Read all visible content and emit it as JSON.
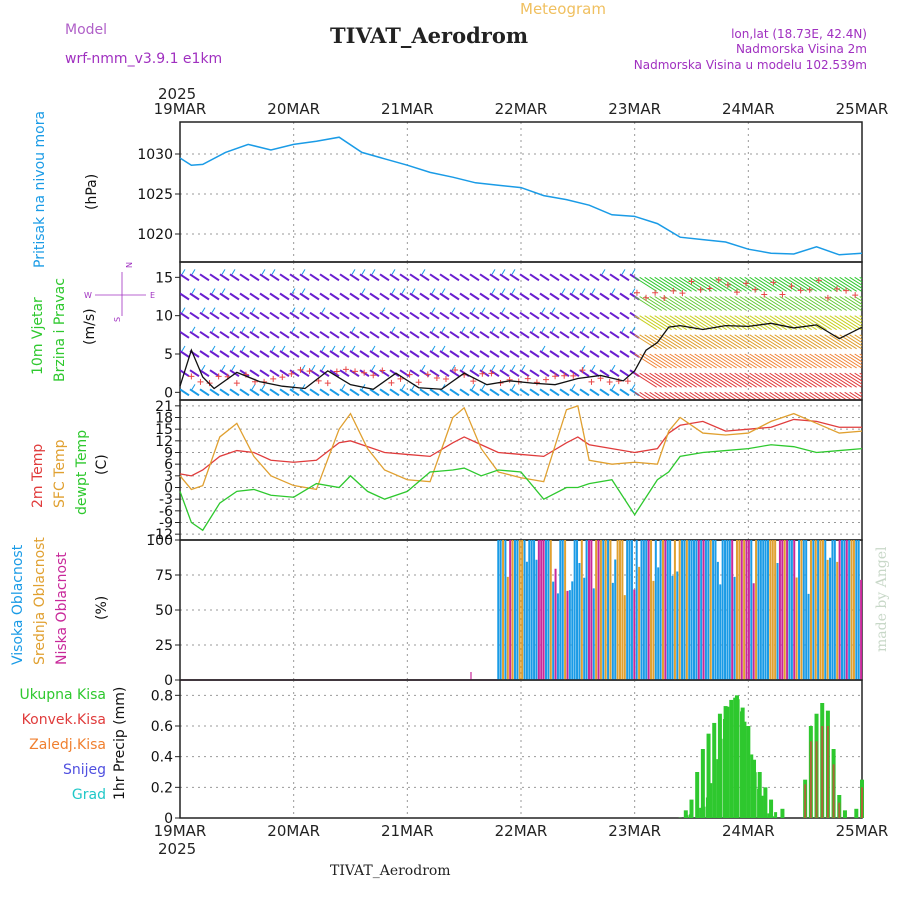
{
  "header": {
    "model_label": "Model",
    "model_name": "wrf-nmm_v3.9.1 e1km",
    "meteogram_label": "Meteogram",
    "station_title": "TIVAT_Aerodrom",
    "lonlat": "lon,lat (18.73E, 42.4N)",
    "altitude": "Nadmorska Visina 2m",
    "model_altitude": "Nadmorska Visina u modelu 102.539m",
    "year_top": "2025",
    "year_bottom": "2025",
    "footer_station": "TIVAT_Aerodrom",
    "credit": "made by Angel"
  },
  "x_axis": {
    "ticks": [
      "19MAR",
      "20MAR",
      "21MAR",
      "22MAR",
      "23MAR",
      "24MAR",
      "25MAR"
    ]
  },
  "colors": {
    "pressure": "#1a9be6",
    "temp2m": "#e03c3c",
    "sfc_temp": "#e0a030",
    "dewpoint": "#2ec82e",
    "high_cloud": "#1a9be6",
    "mid_cloud": "#e0a030",
    "low_cloud": "#c8289a",
    "total_precip": "#2ec82e",
    "conv_precip": "#e03c3c",
    "frozen_precip": "#f08030",
    "snow": "#5050e0",
    "hail": "#20c8c8",
    "wind_ms": "#6a1fd0"
  },
  "chart_data": [
    {
      "type": "line",
      "panel": "pressure",
      "title_labels": [
        "Pritisak na nivou mora"
      ],
      "ylabel": "(hPa)",
      "yticks": [
        "1030",
        "1025",
        "1020"
      ],
      "ylim": [
        1016.5,
        1034
      ],
      "x": [
        0,
        0.1,
        0.2,
        0.4,
        0.6,
        0.8,
        1.0,
        1.2,
        1.4,
        1.6,
        1.8,
        2.0,
        2.2,
        2.4,
        2.6,
        2.8,
        3.0,
        3.2,
        3.4,
        3.6,
        3.8,
        4.0,
        4.2,
        4.4,
        4.6,
        4.8,
        5.0,
        5.2,
        5.4,
        5.6,
        5.8,
        6.0
      ],
      "series": [
        {
          "values": [
            1029.5,
            1028.6,
            1028.7,
            1030.2,
            1031.2,
            1030.5,
            1031.2,
            1031.6,
            1032.1,
            1030.2,
            1029.4,
            1028.6,
            1027.7,
            1027.1,
            1026.4,
            1026.1,
            1025.8,
            1024.8,
            1024.3,
            1023.6,
            1022.4,
            1022.2,
            1021.3,
            1019.6,
            1019.3,
            1019.0,
            1018.1,
            1017.6,
            1017.5,
            1018.4,
            1017.4,
            1017.6
          ]
        }
      ]
    },
    {
      "type": "line",
      "panel": "wind",
      "title_labels": [
        "10m Vjetar",
        "Brzina i Pravac"
      ],
      "ylabel": "(m/s)",
      "compass": {
        "n": "N",
        "s": "S",
        "w": "W",
        "e": "E"
      },
      "yticks": [
        "15",
        "10",
        "5",
        "0"
      ],
      "ylim": [
        -1,
        17
      ],
      "x": [
        0,
        0.1,
        0.2,
        0.3,
        0.5,
        0.7,
        0.9,
        1.1,
        1.3,
        1.5,
        1.7,
        1.9,
        2.1,
        2.3,
        2.5,
        2.7,
        2.9,
        3.1,
        3.3,
        3.5,
        3.7,
        3.9,
        4.0,
        4.1,
        4.2,
        4.3,
        4.4,
        4.6,
        4.8,
        5.0,
        5.2,
        5.4,
        5.6,
        5.8,
        6.0
      ],
      "series": [
        {
          "values": [
            0.8,
            5.5,
            2.0,
            0.5,
            2.6,
            1.4,
            0.8,
            0.5,
            2.8,
            1.0,
            0.4,
            2.5,
            0.6,
            0.4,
            2.5,
            1.0,
            1.5,
            1.2,
            1.0,
            1.8,
            2.2,
            1.5,
            2.8,
            5.5,
            6.5,
            8.5,
            8.7,
            8.2,
            8.7,
            8.6,
            9.0,
            8.4,
            8.8,
            7.0,
            8.5
          ]
        }
      ]
    },
    {
      "type": "line",
      "panel": "temperature",
      "title_labels": [
        "2m Temp",
        "SFC Temp",
        "dewpt Temp"
      ],
      "ylabel": "(C)",
      "yticks": [
        "21",
        "18",
        "15",
        "12",
        "9",
        "6",
        "3",
        "0",
        "-3",
        "-6",
        "-9",
        "-12"
      ],
      "ylim": [
        -13.5,
        22.5
      ],
      "x": [
        0,
        0.1,
        0.2,
        0.35,
        0.5,
        0.65,
        0.8,
        1.0,
        1.2,
        1.4,
        1.5,
        1.65,
        1.8,
        2.0,
        2.2,
        2.4,
        2.5,
        2.65,
        2.8,
        3.0,
        3.2,
        3.4,
        3.5,
        3.6,
        3.8,
        4.0,
        4.2,
        4.3,
        4.4,
        4.6,
        4.8,
        5.0,
        5.2,
        5.4,
        5.6,
        5.8,
        6.0
      ],
      "series": [
        {
          "name": "2m Temp",
          "values": [
            3.5,
            3.0,
            4.5,
            8.0,
            9.5,
            9.0,
            7.0,
            6.5,
            7.0,
            11.5,
            12.0,
            10.5,
            9.0,
            8.5,
            8.0,
            11.5,
            13.0,
            11.0,
            9.0,
            8.5,
            8.0,
            11.5,
            13.0,
            11.0,
            10.0,
            9.0,
            10.0,
            14.0,
            16.0,
            17.0,
            14.5,
            15.0,
            15.5,
            17.5,
            17.0,
            15.5,
            15.5
          ]
        },
        {
          "name": "SFC Temp",
          "values": [
            3.0,
            -0.5,
            0.5,
            13.0,
            16.5,
            8.0,
            3.0,
            0.5,
            -0.5,
            15.0,
            19.0,
            10.0,
            4.5,
            2.0,
            1.5,
            18.0,
            20.5,
            10.0,
            4.0,
            2.5,
            1.5,
            20.0,
            21.0,
            7.0,
            6.0,
            6.5,
            6.0,
            14.5,
            18.0,
            14.0,
            13.5,
            14.0,
            17.0,
            19.0,
            16.5,
            14.0,
            14.5
          ]
        },
        {
          "name": "dewpt Temp",
          "values": [
            -1.0,
            -9.0,
            -11.0,
            -4.0,
            -1.0,
            -0.5,
            -2.0,
            -2.5,
            1.0,
            0.0,
            3.0,
            -1.0,
            -3.0,
            -1.0,
            4.0,
            4.5,
            5.0,
            3.0,
            4.5,
            4.0,
            -3.0,
            0.0,
            0.0,
            1.0,
            2.0,
            -7.0,
            2.0,
            4.0,
            8.0,
            9.0,
            9.5,
            10.0,
            11.0,
            10.5,
            9.0,
            9.5,
            10.0
          ]
        }
      ]
    },
    {
      "type": "bar",
      "panel": "clouds",
      "title_labels": [
        "Visoka Oblacnost",
        "Srednja Oblacnost",
        "Niska Oblacnost"
      ],
      "ylabel": "(%)",
      "yticks": [
        "100",
        "75",
        "50",
        "25",
        "0"
      ],
      "ylim": [
        0,
        100
      ],
      "cloud_start_day": 2.8,
      "series": [
        {
          "name": "Visoka Oblacnost",
          "values": [
            100
          ]
        },
        {
          "name": "Srednja Oblacnost",
          "values": [
            100
          ]
        },
        {
          "name": "Niska Oblacnost",
          "values": [
            100
          ]
        }
      ]
    },
    {
      "type": "bar",
      "panel": "precipitation",
      "title_labels": [
        "Ukupna Kisa",
        "Konvek.Kisa",
        "Zaledj.Kisa",
        "Snijeg",
        "Grad"
      ],
      "ylabel": "1hr Precip (mm)",
      "yticks": [
        "0.8",
        "0.6",
        "0.4",
        "0.2",
        "0"
      ],
      "ylim": [
        0,
        0.9
      ],
      "x": [
        4.45,
        4.5,
        4.55,
        4.6,
        4.65,
        4.7,
        4.75,
        4.8,
        4.85,
        4.9,
        4.95,
        5.0,
        5.05,
        5.1,
        5.15,
        5.2,
        5.3,
        5.5,
        5.55,
        5.6,
        5.65,
        5.7,
        5.75,
        5.8,
        5.85,
        5.95,
        6.0
      ],
      "series": [
        {
          "name": "Ukupna Kisa",
          "values": [
            0.05,
            0.12,
            0.3,
            0.45,
            0.55,
            0.62,
            0.68,
            0.73,
            0.77,
            0.8,
            0.72,
            0.6,
            0.38,
            0.3,
            0.2,
            0.12,
            0.06,
            0.25,
            0.6,
            0.68,
            0.75,
            0.7,
            0.45,
            0.15,
            0.05,
            0.06,
            0.25
          ]
        },
        {
          "name": "Konvek.Kisa",
          "values": [
            0,
            0,
            0,
            0,
            0,
            0,
            0,
            0,
            0,
            0,
            0,
            0,
            0,
            0,
            0,
            0,
            0,
            0.22,
            0.5,
            0.5,
            0.6,
            0.6,
            0.35,
            0.1,
            0,
            0,
            0.2
          ]
        }
      ]
    }
  ]
}
